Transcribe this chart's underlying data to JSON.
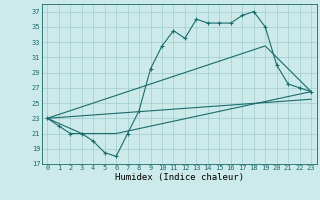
{
  "title": "",
  "xlabel": "Humidex (Indice chaleur)",
  "xlim": [
    -0.5,
    23.5
  ],
  "ylim": [
    17,
    38
  ],
  "yticks": [
    17,
    19,
    21,
    23,
    25,
    27,
    29,
    31,
    33,
    35,
    37
  ],
  "xticks": [
    0,
    1,
    2,
    3,
    4,
    5,
    6,
    7,
    8,
    9,
    10,
    11,
    12,
    13,
    14,
    15,
    16,
    17,
    18,
    19,
    20,
    21,
    22,
    23
  ],
  "bg_color": "#cdeaea",
  "grid_color": "#a0cccc",
  "line_color": "#1a6b6b",
  "line1_x": [
    0,
    1,
    2,
    3,
    4,
    5,
    6,
    7,
    8,
    9,
    10,
    11,
    12,
    13,
    14,
    15,
    16,
    17,
    18,
    19,
    20,
    21,
    22,
    23
  ],
  "line1_y": [
    23,
    22,
    21,
    21,
    20,
    18.5,
    18,
    21,
    24,
    29.5,
    32.5,
    34.5,
    33.5,
    36,
    35.5,
    35.5,
    35.5,
    36.5,
    37,
    35,
    30,
    27.5,
    27,
    26.5
  ],
  "line2_x": [
    0,
    3,
    6,
    23
  ],
  "line2_y": [
    23,
    21,
    21,
    26.5
  ],
  "line3_x": [
    0,
    23
  ],
  "line3_y": [
    23,
    25.5
  ],
  "line4_x": [
    0,
    19,
    23
  ],
  "line4_y": [
    23,
    32.5,
    26.5
  ]
}
